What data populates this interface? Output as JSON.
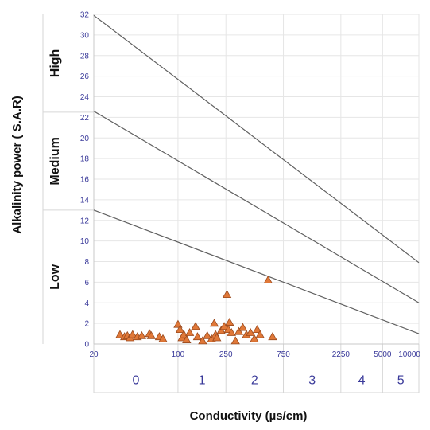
{
  "chart_data": {
    "type": "scatter",
    "xlabel": "Conductivity (µs/cm)",
    "ylabel": "Alkalinity power ( S.A.R)",
    "x_scale": "log",
    "xlim": [
      20,
      10000
    ],
    "ylim": [
      0,
      32
    ],
    "x_ticks": [
      "20",
      "100",
      "250",
      "750",
      "2250",
      "5000",
      "10000"
    ],
    "x_tick_values": [
      20,
      100,
      250,
      750,
      2250,
      5000,
      10000
    ],
    "y_ticks": [
      "0",
      "2",
      "4",
      "6",
      "8",
      "10",
      "12",
      "14",
      "16",
      "18",
      "20",
      "22",
      "24",
      "26",
      "28",
      "30",
      "32"
    ],
    "y_tick_values": [
      0,
      2,
      4,
      6,
      8,
      10,
      12,
      14,
      16,
      18,
      20,
      22,
      24,
      26,
      28,
      30,
      32
    ],
    "salinity_classes": [
      {
        "label": "0",
        "from": 20,
        "to": 100
      },
      {
        "label": "1",
        "from": 100,
        "to": 250
      },
      {
        "label": "2",
        "from": 250,
        "to": 750
      },
      {
        "label": "3",
        "from": 750,
        "to": 2250
      },
      {
        "label": "4",
        "from": 2250,
        "to": 5000
      },
      {
        "label": "5",
        "from": 5000,
        "to": 10000
      }
    ],
    "sar_zones": [
      {
        "label": "High",
        "from": 22.5,
        "to": 32
      },
      {
        "label": "Medium",
        "from": 13,
        "to": 22.5
      },
      {
        "label": "Low",
        "from": 0,
        "to": 13
      }
    ],
    "boundary_lines": [
      {
        "points": [
          [
            20,
            13
          ],
          [
            10000,
            1
          ]
        ]
      },
      {
        "points": [
          [
            20,
            22.6
          ],
          [
            10000,
            4
          ]
        ]
      },
      {
        "points": [
          [
            20,
            31.9
          ],
          [
            10000,
            7.9
          ]
        ]
      }
    ],
    "grid": true,
    "marker_color": "#e07838",
    "line_color": "#606060",
    "label_color": "#3a3a9a",
    "points": [
      [
        33,
        0.9
      ],
      [
        36,
        0.7
      ],
      [
        38,
        0.8
      ],
      [
        40,
        0.6
      ],
      [
        42,
        0.9
      ],
      [
        46,
        0.7
      ],
      [
        50,
        0.8
      ],
      [
        58,
        1.0
      ],
      [
        60,
        0.8
      ],
      [
        70,
        0.7
      ],
      [
        75,
        0.5
      ],
      [
        100,
        1.9
      ],
      [
        104,
        1.4
      ],
      [
        108,
        0.6
      ],
      [
        112,
        0.9
      ],
      [
        118,
        0.4
      ],
      [
        125,
        1.1
      ],
      [
        140,
        1.7
      ],
      [
        145,
        0.7
      ],
      [
        160,
        0.3
      ],
      [
        175,
        0.8
      ],
      [
        190,
        0.5
      ],
      [
        200,
        2.0
      ],
      [
        205,
        0.9
      ],
      [
        210,
        0.6
      ],
      [
        228,
        1.3
      ],
      [
        242,
        1.7
      ],
      [
        255,
        4.8
      ],
      [
        262,
        1.4
      ],
      [
        268,
        2.1
      ],
      [
        278,
        1.1
      ],
      [
        300,
        0.3
      ],
      [
        320,
        1.2
      ],
      [
        345,
        1.6
      ],
      [
        370,
        0.9
      ],
      [
        400,
        1.1
      ],
      [
        430,
        0.5
      ],
      [
        455,
        1.4
      ],
      [
        480,
        0.9
      ],
      [
        560,
        6.2
      ],
      [
        610,
        0.7
      ]
    ]
  }
}
